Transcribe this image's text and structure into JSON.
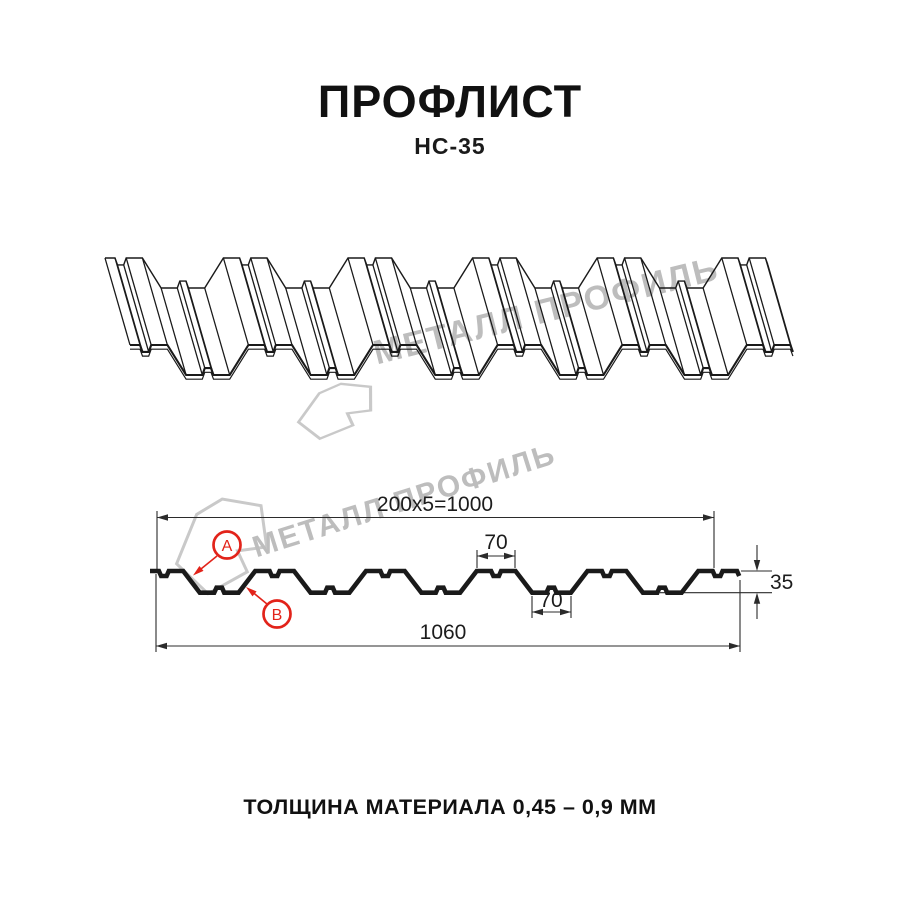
{
  "header": {
    "title": "ПРОФЛИСТ",
    "subtitle": "НС-35"
  },
  "footer": {
    "text": "ТОЛЩИНА МАТЕРИАЛА 0,45 – 0,9 ММ"
  },
  "watermark": {
    "brand": "МЕТАЛЛ ПРОФИЛЬ"
  },
  "cross_section": {
    "dim_top": "200x5=1000",
    "dim_crest": "70",
    "dim_valley": "70",
    "dim_height": "35",
    "dim_total": "1060",
    "marker_a": "A",
    "marker_b": "B"
  },
  "colors": {
    "line": "#1a1a1a",
    "dim": "#2b2b2b",
    "red": "#e2231a",
    "watermark_text": "#b9b9b9",
    "watermark_logo": "#c9c9c9"
  }
}
